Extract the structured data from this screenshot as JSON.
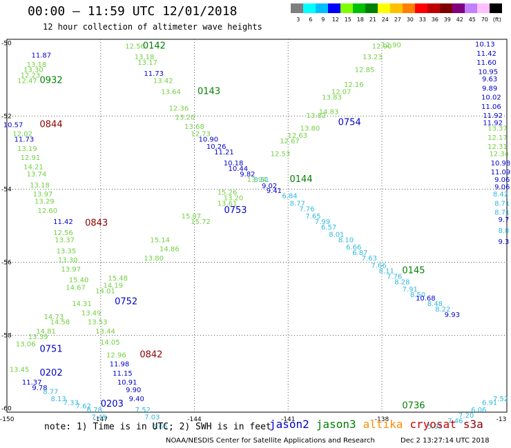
{
  "title": "00:00 – 11:59 UTC 12/01/2018",
  "subtitle": "12 hour collection of altimeter wave heights",
  "color_scale": {
    "labels": [
      "3",
      "6",
      "9",
      "12",
      "15",
      "18",
      "21",
      "24",
      "27",
      "30",
      "33",
      "36",
      "39",
      "42",
      "45",
      "70",
      "(ft)"
    ],
    "colors": [
      "#7f7f7f",
      "#00ffff",
      "#00bfff",
      "#0000ff",
      "#7fff00",
      "#00c000",
      "#008000",
      "#ffff00",
      "#ffc000",
      "#ff8000",
      "#ff0000",
      "#c00000",
      "#800000",
      "#800080",
      "#c080ff",
      "#ffc0ff",
      "#000000"
    ]
  },
  "axes": {
    "lon_ticks": [
      "-150",
      "-147",
      "-144",
      "-141",
      "-138",
      "-13"
    ],
    "lat_ticks": [
      "-50",
      "-52",
      "-54",
      "-56",
      "-58",
      "-60"
    ]
  },
  "footer": {
    "note": "note: 1) Time is in UTC; 2) SWH is in feet",
    "credit": "NOAA/NESDIS Center for Satellite Applications and Research",
    "credit_time": "Dec 2 13:27:14 UTC 2018"
  },
  "legend": [
    {
      "name": "jason2",
      "color": "#0000cc"
    },
    {
      "name": "jason3",
      "color": "#008000"
    },
    {
      "name": "altika",
      "color": "#ff8c00"
    },
    {
      "name": "cryosat",
      "color": "#cc0000"
    },
    {
      "name": "s3a",
      "color": "#8b0000"
    }
  ],
  "chart_data": {
    "type": "scatter",
    "xlim": [
      -150,
      -134
    ],
    "ylim": [
      -60.1,
      -49.9
    ],
    "time_labels": [
      {
        "text": "0142",
        "lon": -145.65,
        "lat": -50.15,
        "color": "#008000"
      },
      {
        "text": "0143",
        "lon": -143.9,
        "lat": -51.4,
        "color": "#008000"
      },
      {
        "text": "0932",
        "lon": -148.95,
        "lat": -51.1,
        "color": "#008000"
      },
      {
        "text": "0844",
        "lon": -148.95,
        "lat": -52.3,
        "color": "#8b0000"
      },
      {
        "text": "0754",
        "lon": -139.4,
        "lat": -52.25,
        "color": "#0000cc"
      },
      {
        "text": "0144",
        "lon": -140.95,
        "lat": -53.8,
        "color": "#008000"
      },
      {
        "text": "0753",
        "lon": -143.05,
        "lat": -54.65,
        "color": "#0000cc"
      },
      {
        "text": "0843",
        "lon": -147.5,
        "lat": -55.0,
        "color": "#8b0000"
      },
      {
        "text": "0145",
        "lon": -137.35,
        "lat": -56.3,
        "color": "#008000"
      },
      {
        "text": "0752",
        "lon": -146.55,
        "lat": -57.15,
        "color": "#0000cc"
      },
      {
        "text": "0751",
        "lon": -148.95,
        "lat": -58.45,
        "color": "#0000cc"
      },
      {
        "text": "0842",
        "lon": -145.75,
        "lat": -58.6,
        "color": "#8b0000"
      },
      {
        "text": "0202",
        "lon": -148.95,
        "lat": -59.1,
        "color": "#0000cc"
      },
      {
        "text": "0203",
        "lon": -147.0,
        "lat": -59.95,
        "color": "#0000cc"
      },
      {
        "text": "0736",
        "lon": -137.35,
        "lat": -60.0,
        "color": "#008000"
      }
    ],
    "points": [
      {
        "t": "11.87",
        "lon": -148.9,
        "lat": -50.4,
        "c": "#0000cc"
      },
      {
        "t": "12.47",
        "lon": -149.35,
        "lat": -51.1,
        "c": "#70d040"
      },
      {
        "t": "12.23",
        "lon": -149.25,
        "lat": -50.95,
        "c": "#70d040"
      },
      {
        "t": "13.30",
        "lon": -149.15,
        "lat": -50.8,
        "c": "#70d040"
      },
      {
        "t": "13.18",
        "lon": -149.05,
        "lat": -50.65,
        "c": "#70d040"
      },
      {
        "t": "12.56",
        "lon": -145.9,
        "lat": -50.15,
        "c": "#70d040"
      },
      {
        "t": "13.18",
        "lon": -145.6,
        "lat": -50.45,
        "c": "#70d040"
      },
      {
        "t": "13.17",
        "lon": -145.5,
        "lat": -50.6,
        "c": "#70d040"
      },
      {
        "t": "11.73",
        "lon": -145.3,
        "lat": -50.9,
        "c": "#0000cc"
      },
      {
        "t": "13.42",
        "lon": -145.0,
        "lat": -51.1,
        "c": "#70d040"
      },
      {
        "t": "13.64",
        "lon": -144.75,
        "lat": -51.4,
        "c": "#70d040"
      },
      {
        "t": "12.36",
        "lon": -144.5,
        "lat": -51.85,
        "c": "#70d040"
      },
      {
        "t": "13.20",
        "lon": -144.3,
        "lat": -52.1,
        "c": "#70d040"
      },
      {
        "t": "13.68",
        "lon": -144.0,
        "lat": -52.35,
        "c": "#70d040"
      },
      {
        "t": "12.73",
        "lon": -143.8,
        "lat": -52.55,
        "c": "#70d040"
      },
      {
        "t": "10.90",
        "lon": -143.55,
        "lat": -52.7,
        "c": "#0000cc"
      },
      {
        "t": "10.26",
        "lon": -143.3,
        "lat": -52.9,
        "c": "#0000cc"
      },
      {
        "t": "11.21",
        "lon": -143.05,
        "lat": -53.05,
        "c": "#0000cc"
      },
      {
        "t": "10.18",
        "lon": -142.75,
        "lat": -53.35,
        "c": "#0000cc"
      },
      {
        "t": "10.44",
        "lon": -142.6,
        "lat": -53.5,
        "c": "#0000cc"
      },
      {
        "t": "9.82",
        "lon": -142.3,
        "lat": -53.65,
        "c": "#0000cc"
      },
      {
        "t": "9.02",
        "lon": -141.6,
        "lat": -53.97,
        "c": "#0000cc"
      },
      {
        "t": "9.41",
        "lon": -141.45,
        "lat": -54.1,
        "c": "#0000cc"
      },
      {
        "t": "8.51",
        "lon": -141.85,
        "lat": -53.8,
        "c": "#30b8e0"
      },
      {
        "t": "6.84",
        "lon": -140.95,
        "lat": -54.25,
        "c": "#30b8e0"
      },
      {
        "t": "8.77",
        "lon": -140.7,
        "lat": -54.45,
        "c": "#30b8e0"
      },
      {
        "t": "7.76",
        "lon": -140.4,
        "lat": -54.6,
        "c": "#30b8e0"
      },
      {
        "t": "7.65",
        "lon": -140.2,
        "lat": -54.8,
        "c": "#30b8e0"
      },
      {
        "t": "7.99",
        "lon": -139.9,
        "lat": -54.95,
        "c": "#30b8e0"
      },
      {
        "t": "6.57",
        "lon": -139.7,
        "lat": -55.1,
        "c": "#30b8e0"
      },
      {
        "t": "8.01",
        "lon": -139.45,
        "lat": -55.3,
        "c": "#30b8e0"
      },
      {
        "t": "8.10",
        "lon": -139.15,
        "lat": -55.45,
        "c": "#30b8e0"
      },
      {
        "t": "6.66",
        "lon": -138.9,
        "lat": -55.65,
        "c": "#30b8e0"
      },
      {
        "t": "6.87",
        "lon": -138.7,
        "lat": -55.8,
        "c": "#30b8e0"
      },
      {
        "t": "7.63",
        "lon": -138.4,
        "lat": -55.95,
        "c": "#30b8e0"
      },
      {
        "t": "7.66",
        "lon": -138.1,
        "lat": -56.15,
        "c": "#30b8e0"
      },
      {
        "t": "8.11",
        "lon": -137.85,
        "lat": -56.3,
        "c": "#30b8e0"
      },
      {
        "t": "7.76",
        "lon": -137.6,
        "lat": -56.45,
        "c": "#30b8e0"
      },
      {
        "t": "8.28",
        "lon": -137.35,
        "lat": -56.6,
        "c": "#30b8e0"
      },
      {
        "t": "7.91",
        "lon": -137.1,
        "lat": -56.8,
        "c": "#30b8e0"
      },
      {
        "t": "8.50",
        "lon": -136.85,
        "lat": -56.95,
        "c": "#30b8e0"
      },
      {
        "t": "10.68",
        "lon": -136.6,
        "lat": -57.05,
        "c": "#0000cc"
      },
      {
        "t": "8.48",
        "lon": -136.3,
        "lat": -57.2,
        "c": "#30b8e0"
      },
      {
        "t": "8.22",
        "lon": -136.05,
        "lat": -57.35,
        "c": "#30b8e0"
      },
      {
        "t": "9.93",
        "lon": -135.75,
        "lat": -57.5,
        "c": "#0000cc"
      },
      {
        "t": "12.90",
        "lon": -138.0,
        "lat": -50.15,
        "c": "#70d040"
      },
      {
        "t": "13.23",
        "lon": -138.3,
        "lat": -50.45,
        "c": "#70d040"
      },
      {
        "t": "12.85",
        "lon": -138.55,
        "lat": -50.8,
        "c": "#70d040"
      },
      {
        "t": "12.16",
        "lon": -138.9,
        "lat": -51.2,
        "c": "#70d040"
      },
      {
        "t": "12.07",
        "lon": -139.3,
        "lat": -51.4,
        "c": "#70d040"
      },
      {
        "t": "13.83",
        "lon": -139.6,
        "lat": -51.55,
        "c": "#70d040"
      },
      {
        "t": "14.83",
        "lon": -139.7,
        "lat": -51.95,
        "c": "#70d040"
      },
      {
        "t": "13.82",
        "lon": -140.1,
        "lat": -52.05,
        "c": "#70d040"
      },
      {
        "t": "13.80",
        "lon": -140.3,
        "lat": -52.4,
        "c": "#70d040"
      },
      {
        "t": "12.63",
        "lon": -140.7,
        "lat": -52.6,
        "c": "#70d040"
      },
      {
        "t": "12.67",
        "lon": -140.95,
        "lat": -52.75,
        "c": "#70d040"
      },
      {
        "t": "12.53",
        "lon": -141.25,
        "lat": -53.1,
        "c": "#70d040"
      },
      {
        "t": "13.94",
        "lon": -142.0,
        "lat": -53.8,
        "c": "#70d040"
      },
      {
        "t": "15.26",
        "lon": -142.95,
        "lat": -54.15,
        "c": "#70d040"
      },
      {
        "t": "13.20",
        "lon": -142.75,
        "lat": -54.3,
        "c": "#70d040"
      },
      {
        "t": "13.61",
        "lon": -142.95,
        "lat": -54.45,
        "c": "#70d040"
      },
      {
        "t": "15.07",
        "lon": -144.1,
        "lat": -54.8,
        "c": "#70d040"
      },
      {
        "t": "15.72",
        "lon": -143.8,
        "lat": -54.95,
        "c": "#70d040"
      },
      {
        "t": "15.14",
        "lon": -145.1,
        "lat": -55.45,
        "c": "#70d040"
      },
      {
        "t": "14.86",
        "lon": -144.8,
        "lat": -55.7,
        "c": "#70d040"
      },
      {
        "t": "13.80",
        "lon": -145.3,
        "lat": -55.95,
        "c": "#70d040"
      },
      {
        "t": "15.48",
        "lon": -146.45,
        "lat": -56.5,
        "c": "#70d040"
      },
      {
        "t": "15.40",
        "lon": -147.7,
        "lat": -56.55,
        "c": "#70d040"
      },
      {
        "t": "14.19",
        "lon": -146.6,
        "lat": -56.7,
        "c": "#70d040"
      },
      {
        "t": "14.01",
        "lon": -146.85,
        "lat": -56.85,
        "c": "#70d040"
      },
      {
        "t": "14.67",
        "lon": -147.8,
        "lat": -56.75,
        "c": "#70d040"
      },
      {
        "t": "14.31",
        "lon": -147.6,
        "lat": -57.2,
        "c": "#70d040"
      },
      {
        "t": "13.49",
        "lon": -147.3,
        "lat": -57.45,
        "c": "#70d040"
      },
      {
        "t": "13.53",
        "lon": -147.1,
        "lat": -57.7,
        "c": "#70d040"
      },
      {
        "t": "13.44",
        "lon": -146.85,
        "lat": -57.95,
        "c": "#70d040"
      },
      {
        "t": "14.05",
        "lon": -146.7,
        "lat": -58.25,
        "c": "#70d040"
      },
      {
        "t": "12.96",
        "lon": -146.5,
        "lat": -58.6,
        "c": "#70d040"
      },
      {
        "t": "11.98",
        "lon": -146.4,
        "lat": -58.85,
        "c": "#0000cc"
      },
      {
        "t": "11.15",
        "lon": -146.3,
        "lat": -59.1,
        "c": "#0000cc"
      },
      {
        "t": "10.91",
        "lon": -146.15,
        "lat": -59.35,
        "c": "#0000cc"
      },
      {
        "t": "9.90",
        "lon": -145.95,
        "lat": -59.55,
        "c": "#0000cc"
      },
      {
        "t": "9.40",
        "lon": -145.85,
        "lat": -59.8,
        "c": "#0000cc"
      },
      {
        "t": "7.52",
        "lon": -145.65,
        "lat": -60.1,
        "c": "#30b8e0"
      },
      {
        "t": "14.73",
        "lon": -148.5,
        "lat": -57.55,
        "c": "#70d040"
      },
      {
        "t": "14.58",
        "lon": -148.3,
        "lat": -57.7,
        "c": "#70d040"
      },
      {
        "t": "13.39",
        "lon": -149.0,
        "lat": -58.1,
        "c": "#70d040"
      },
      {
        "t": "13.06",
        "lon": -149.4,
        "lat": -58.3,
        "c": "#70d040"
      },
      {
        "t": "14.81",
        "lon": -148.75,
        "lat": -57.95,
        "c": "#70d040"
      },
      {
        "t": "10.57",
        "lon": -149.8,
        "lat": -52.3,
        "c": "#0000cc"
      },
      {
        "t": "12.02",
        "lon": -149.5,
        "lat": -52.55,
        "c": "#70d040"
      },
      {
        "t": "11.73",
        "lon": -149.45,
        "lat": -52.7,
        "c": "#0000cc"
      },
      {
        "t": "13.19",
        "lon": -149.35,
        "lat": -52.95,
        "c": "#70d040"
      },
      {
        "t": "12.91",
        "lon": -149.25,
        "lat": -53.2,
        "c": "#70d040"
      },
      {
        "t": "14.21",
        "lon": -149.15,
        "lat": -53.45,
        "c": "#70d040"
      },
      {
        "t": "13.74",
        "lon": -149.05,
        "lat": -53.65,
        "c": "#70d040"
      },
      {
        "t": "13.18",
        "lon": -148.95,
        "lat": -53.95,
        "c": "#70d040"
      },
      {
        "t": "13.97",
        "lon": -148.85,
        "lat": -54.2,
        "c": "#70d040"
      },
      {
        "t": "13.29",
        "lon": -148.8,
        "lat": -54.4,
        "c": "#70d040"
      },
      {
        "t": "12.60",
        "lon": -148.7,
        "lat": -54.65,
        "c": "#70d040"
      },
      {
        "t": "11.42",
        "lon": -148.2,
        "lat": -54.95,
        "c": "#0000cc"
      },
      {
        "t": "12.56",
        "lon": -148.2,
        "lat": -55.25,
        "c": "#70d040"
      },
      {
        "t": "13.37",
        "lon": -148.15,
        "lat": -55.45,
        "c": "#70d040"
      },
      {
        "t": "13.35",
        "lon": -148.1,
        "lat": -55.75,
        "c": "#70d040"
      },
      {
        "t": "13.30",
        "lon": -148.05,
        "lat": -56.0,
        "c": "#70d040"
      },
      {
        "t": "13.97",
        "lon": -147.95,
        "lat": -56.25,
        "c": "#70d040"
      },
      {
        "t": "13.45",
        "lon": -149.6,
        "lat": -59.0,
        "c": "#70d040"
      },
      {
        "t": "11.37",
        "lon": -149.2,
        "lat": -59.35,
        "c": "#0000cc"
      },
      {
        "t": "9.78",
        "lon": -148.95,
        "lat": -59.5,
        "c": "#0000cc"
      },
      {
        "t": "8.77",
        "lon": -148.6,
        "lat": -59.6,
        "c": "#30b8e0"
      },
      {
        "t": "8.13",
        "lon": -148.35,
        "lat": -59.8,
        "c": "#30b8e0"
      },
      {
        "t": "7.33",
        "lon": -147.95,
        "lat": -59.9,
        "c": "#30b8e0"
      },
      {
        "t": "7.62",
        "lon": -147.55,
        "lat": -60.0,
        "c": "#30b8e0"
      },
      {
        "t": "6.78",
        "lon": -147.2,
        "lat": -60.1,
        "c": "#30b8e0"
      },
      {
        "t": "7.49",
        "lon": -147.05,
        "lat": -60.3,
        "c": "#30b8e0"
      },
      {
        "t": "7.03",
        "lon": -145.35,
        "lat": -60.3,
        "c": "#30b8e0"
      },
      {
        "t": "6.65",
        "lon": -145.1,
        "lat": -60.55,
        "c": "#30b8e0"
      },
      {
        "t": "10.13",
        "lon": -134.7,
        "lat": -50.1,
        "c": "#0000cc"
      },
      {
        "t": "11.42",
        "lon": -134.65,
        "lat": -50.35,
        "c": "#0000cc"
      },
      {
        "t": "11.60",
        "lon": -134.65,
        "lat": -50.6,
        "c": "#0000cc"
      },
      {
        "t": "10.95",
        "lon": -134.6,
        "lat": -50.85,
        "c": "#0000cc"
      },
      {
        "t": "9.63",
        "lon": -134.55,
        "lat": -51.05,
        "c": "#0000cc"
      },
      {
        "t": "9.89",
        "lon": -134.55,
        "lat": -51.3,
        "c": "#0000cc"
      },
      {
        "t": "10.02",
        "lon": -134.5,
        "lat": -51.55,
        "c": "#0000cc"
      },
      {
        "t": "11.06",
        "lon": -134.5,
        "lat": -51.8,
        "c": "#0000cc"
      },
      {
        "t": "11.92",
        "lon": -134.45,
        "lat": -52.05,
        "c": "#0000cc"
      },
      {
        "t": "11.92",
        "lon": -134.45,
        "lat": -52.25,
        "c": "#0000cc"
      },
      {
        "t": "13.37",
        "lon": -134.3,
        "lat": -52.4,
        "c": "#70d040"
      },
      {
        "t": "12.17",
        "lon": -134.3,
        "lat": -52.65,
        "c": "#70d040"
      },
      {
        "t": "12.31",
        "lon": -134.3,
        "lat": -52.9,
        "c": "#70d040"
      },
      {
        "t": "12.34",
        "lon": -134.25,
        "lat": -53.1,
        "c": "#70d040"
      },
      {
        "t": "10.98",
        "lon": -134.2,
        "lat": -53.35,
        "c": "#0000cc"
      },
      {
        "t": "11.09",
        "lon": -134.2,
        "lat": -53.6,
        "c": "#0000cc"
      },
      {
        "t": "9.06",
        "lon": -134.15,
        "lat": -53.8,
        "c": "#0000cc"
      },
      {
        "t": "9.06",
        "lon": -134.15,
        "lat": -54.0,
        "c": "#0000cc"
      },
      {
        "t": "8.42",
        "lon": -134.2,
        "lat": -54.2,
        "c": "#30b8e0"
      },
      {
        "t": "8.71",
        "lon": -134.15,
        "lat": -54.45,
        "c": "#30b8e0"
      },
      {
        "t": "8.71",
        "lon": -134.15,
        "lat": -54.7,
        "c": "#30b8e0"
      },
      {
        "t": "9.7",
        "lon": -134.1,
        "lat": -54.9,
        "c": "#0000cc"
      },
      {
        "t": "8.8",
        "lon": -134.1,
        "lat": -55.2,
        "c": "#30b8e0"
      },
      {
        "t": "9.3",
        "lon": -134.1,
        "lat": -55.5,
        "c": "#0000cc"
      },
      {
        "t": "7.52",
        "lon": -134.2,
        "lat": -59.8,
        "c": "#30b8e0"
      },
      {
        "t": "6.91",
        "lon": -134.55,
        "lat": -59.9,
        "c": "#30b8e0"
      },
      {
        "t": "6.06",
        "lon": -134.9,
        "lat": -60.1,
        "c": "#30b8e0"
      },
      {
        "t": "7.20",
        "lon": -135.3,
        "lat": -60.25,
        "c": "#30b8e0"
      },
      {
        "t": "7.46",
        "lon": -135.65,
        "lat": -60.4,
        "c": "#30b8e0"
      },
      {
        "t": "5.95",
        "lon": -136.3,
        "lat": -60.55,
        "c": "#30b8e0"
      },
      {
        "t": "12.90",
        "lon": -137.7,
        "lat": -50.12,
        "c": "#70d040"
      }
    ]
  }
}
